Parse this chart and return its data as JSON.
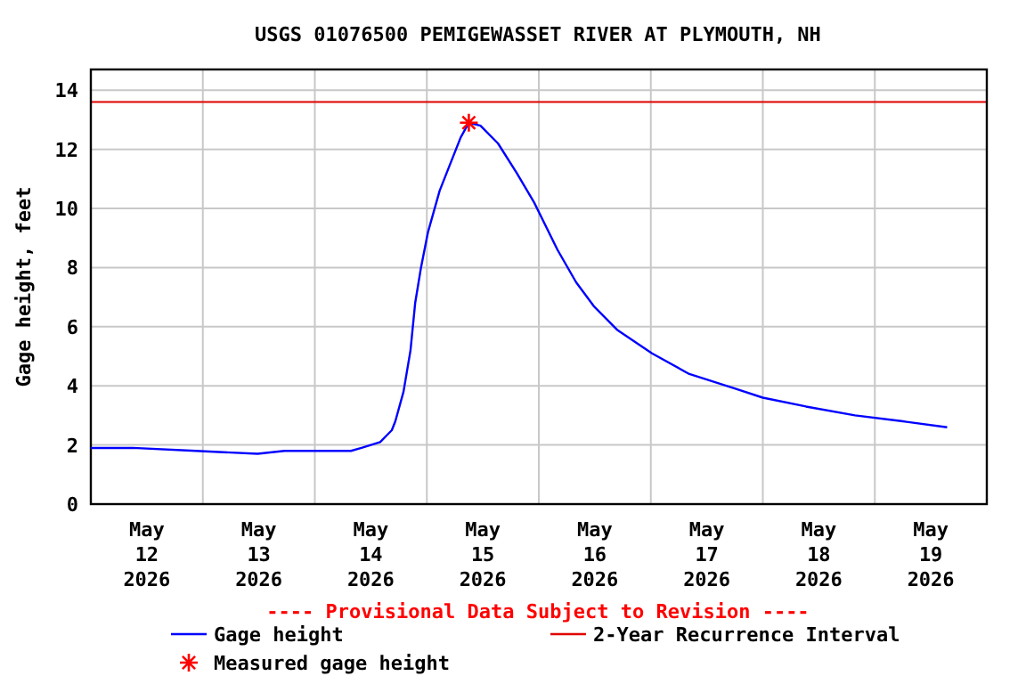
{
  "chart_data": {
    "type": "line",
    "title": "USGS 01076500 PEMIGEWASSET RIVER AT PLYMOUTH, NH",
    "ylabel": "Gage height, feet",
    "xlim": [
      "2026-05-12T00:00",
      "2026-05-20T00:00"
    ],
    "xticks": [
      {
        "value": "2026-05-12T12:00",
        "label": "May\n12\n2026"
      },
      {
        "value": "2026-05-13T12:00",
        "label": "May\n13\n2026"
      },
      {
        "value": "2026-05-14T12:00",
        "label": "May\n14\n2026"
      },
      {
        "value": "2026-05-15T12:00",
        "label": "May\n15\n2026"
      },
      {
        "value": "2026-05-16T12:00",
        "label": "May\n16\n2026"
      },
      {
        "value": "2026-05-17T12:00",
        "label": "May\n17\n2026"
      },
      {
        "value": "2026-05-18T12:00",
        "label": "May\n18\n2026"
      },
      {
        "value": "2026-05-19T12:00",
        "label": "May\n19\n2026"
      },
      {
        "value": "2026-05-13T00:00",
        "label": null
      },
      {
        "value": "2026-05-14T00:00",
        "label": null
      },
      {
        "value": "2026-05-15T00:00",
        "label": null
      },
      {
        "value": "2026-05-16T00:00",
        "label": null
      },
      {
        "value": "2026-05-17T00:00",
        "label": null
      },
      {
        "value": "2026-05-18T00:00",
        "label": null
      },
      {
        "value": "2026-05-19T00:00",
        "label": null
      }
    ],
    "ylim": [
      0,
      14.7
    ],
    "yticks": [
      0,
      2,
      4,
      6,
      8,
      10,
      12,
      14
    ],
    "grid": true,
    "legend": "bottom",
    "series": [
      {
        "name": "Gage height",
        "color": "#0000ff",
        "x": [
          "2026-05-12T00:00",
          "2026-05-12T09:00",
          "2026-05-12T22:30",
          "2026-05-13T11:45",
          "2026-05-13T17:30",
          "2026-05-14T07:45",
          "2026-05-14T10:00",
          "2026-05-14T14:00",
          "2026-05-14T16:30",
          "2026-05-14T17:15",
          "2026-05-14T19:00",
          "2026-05-14T20:30",
          "2026-05-14T21:30",
          "2026-05-14T22:45",
          "2026-05-15T00:15",
          "2026-05-15T02:45",
          "2026-05-15T05:15",
          "2026-05-15T07:15",
          "2026-05-15T09:00",
          "2026-05-15T11:30",
          "2026-05-15T15:15",
          "2026-05-15T19:15",
          "2026-05-15T23:00",
          "2026-05-16T04:00",
          "2026-05-16T08:00",
          "2026-05-16T11:45",
          "2026-05-16T16:45",
          "2026-05-17T00:15",
          "2026-05-17T08:15",
          "2026-05-17T18:15",
          "2026-05-18T00:00",
          "2026-05-18T09:15",
          "2026-05-18T19:45",
          "2026-05-19T06:00",
          "2026-05-19T15:30"
        ],
        "values": [
          1.9,
          1.9,
          1.8,
          1.7,
          1.8,
          1.8,
          1.9,
          2.1,
          2.5,
          2.8,
          3.8,
          5.2,
          6.8,
          8.0,
          9.2,
          10.6,
          11.6,
          12.4,
          12.9,
          12.8,
          12.2,
          11.2,
          10.2,
          8.6,
          7.5,
          6.7,
          5.9,
          5.1,
          4.4,
          3.9,
          3.6,
          3.3,
          3.0,
          2.8,
          2.6
        ]
      },
      {
        "name": "Measured gage height",
        "type": "scatter",
        "marker": "cross",
        "color": "#ff0000",
        "x": [
          "2026-05-15T09:00"
        ],
        "values": [
          12.9
        ]
      }
    ],
    "ref_lines": [
      {
        "axis": "y",
        "value": 13.6,
        "label": "2-Year Recurrence Interval",
        "color": "#e00000"
      }
    ],
    "annotations": [
      "---- Provisional Data Subject to Revision ----"
    ]
  }
}
